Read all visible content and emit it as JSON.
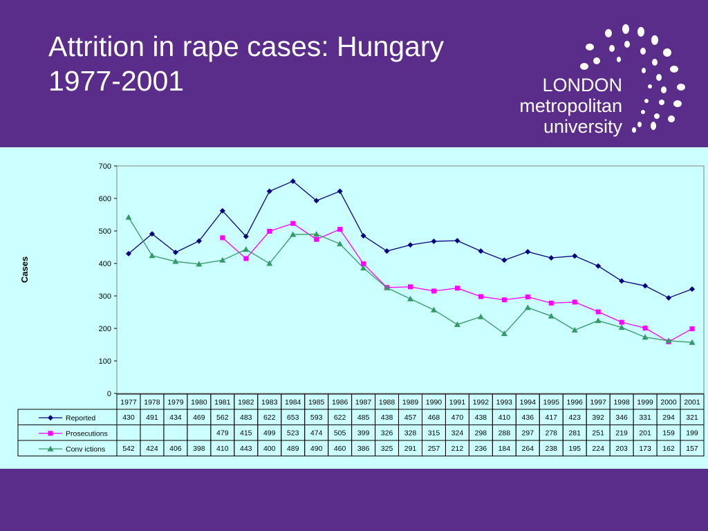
{
  "slide": {
    "title_line1": "Attrition in rape cases: Hungary",
    "title_line2": "1977-2001",
    "logo_line1": "LONDON",
    "logo_line2": "metropolitan",
    "logo_line3": "university"
  },
  "colors": {
    "background": "#5b2d8a",
    "chart_background": "#ccffff",
    "reported": "#000080",
    "prosecutions": "#ff00ff",
    "convictions": "#339966"
  },
  "chart_data": {
    "type": "line",
    "title": "",
    "ylabel": "Cases",
    "xlabel": "",
    "ylim": [
      0,
      700
    ],
    "yticks": [
      0,
      100,
      200,
      300,
      400,
      500,
      600,
      700
    ],
    "grid": true,
    "legend": "data-table-left",
    "categories": [
      "1977",
      "1978",
      "1979",
      "1980",
      "1981",
      "1982",
      "1983",
      "1984",
      "1985",
      "1986",
      "1987",
      "1988",
      "1989",
      "1990",
      "1991",
      "1992",
      "1993",
      "1994",
      "1995",
      "1996",
      "1997",
      "1998",
      "1999",
      "2000",
      "2001"
    ],
    "series": [
      {
        "name": "Reported",
        "marker": "diamond",
        "values": [
          430,
          491,
          434,
          469,
          562,
          483,
          622,
          653,
          593,
          622,
          485,
          438,
          457,
          468,
          470,
          438,
          410,
          436,
          417,
          423,
          392,
          346,
          331,
          294,
          321
        ]
      },
      {
        "name": "Prosecutions",
        "marker": "square",
        "values": [
          null,
          null,
          null,
          null,
          479,
          415,
          499,
          523,
          474,
          505,
          399,
          326,
          328,
          315,
          324,
          298,
          288,
          297,
          278,
          281,
          251,
          219,
          201,
          159,
          199
        ]
      },
      {
        "name": "Convictions",
        "label": "Conv ictions",
        "marker": "triangle",
        "values": [
          542,
          424,
          406,
          398,
          410,
          443,
          400,
          489,
          490,
          460,
          386,
          325,
          291,
          257,
          212,
          236,
          184,
          264,
          238,
          195,
          224,
          203,
          173,
          162,
          157
        ]
      }
    ]
  }
}
